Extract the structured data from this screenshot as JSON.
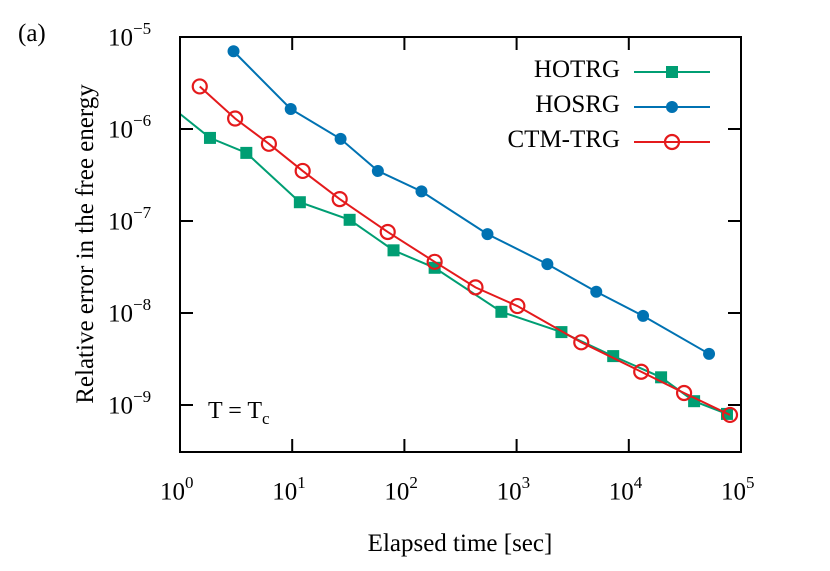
{
  "panel_label": "(a)",
  "annotation": {
    "base": "T = T",
    "sub": "c"
  },
  "colors": {
    "HOTRG": "#009e73",
    "HOSRG": "#0072b2",
    "CTM-TRG": "#e41a1c",
    "axis": "#000000"
  },
  "chart_data": {
    "type": "line",
    "title": "",
    "xlabel": "Elapsed time [sec]",
    "ylabel": "Relative error in the free energy",
    "xscale": "log",
    "yscale": "log",
    "xlim": [
      1,
      100000
    ],
    "ylim": [
      3e-10,
      1e-05
    ],
    "x_ticks": [
      {
        "base": "10",
        "exp": "0",
        "value": 1
      },
      {
        "base": "10",
        "exp": "1",
        "value": 10
      },
      {
        "base": "10",
        "exp": "2",
        "value": 100
      },
      {
        "base": "10",
        "exp": "3",
        "value": 1000
      },
      {
        "base": "10",
        "exp": "4",
        "value": 10000
      },
      {
        "base": "10",
        "exp": "5",
        "value": 100000
      }
    ],
    "y_ticks": [
      {
        "base": "10",
        "exp": "−5",
        "value": 1e-05
      },
      {
        "base": "10",
        "exp": "−6",
        "value": 1e-06
      },
      {
        "base": "10",
        "exp": "−7",
        "value": 1e-07
      },
      {
        "base": "10",
        "exp": "−8",
        "value": 1e-08
      },
      {
        "base": "10",
        "exp": "−9",
        "value": 1e-09
      }
    ],
    "grid": false,
    "legend_position": "upper right",
    "annotations": [
      "T = Tc"
    ],
    "series": [
      {
        "name": "HOTRG",
        "marker": "filled-square",
        "color": "#009e73",
        "line_start": {
          "x": 1.0,
          "y": 1.46e-06
        },
        "x": [
          1.85,
          3.9,
          11.7,
          32.5,
          80,
          186,
          732,
          2510,
          7260,
          19400,
          38200,
          75000
        ],
        "y": [
          8e-07,
          5.5e-07,
          1.6e-07,
          1.03e-07,
          4.8e-08,
          3.1e-08,
          1.03e-08,
          6.2e-09,
          3.4e-09,
          2e-09,
          1.1e-09,
          8e-10
        ]
      },
      {
        "name": "HOSRG",
        "marker": "filled-circle",
        "color": "#0072b2",
        "x": [
          3.0,
          9.7,
          27,
          58,
          142,
          550,
          1880,
          5130,
          13400,
          51900
        ],
        "y": [
          7e-06,
          1.65e-06,
          7.8e-07,
          3.5e-07,
          2.1e-07,
          7.2e-08,
          3.4e-08,
          1.7e-08,
          9.3e-09,
          3.6e-09
        ]
      },
      {
        "name": "CTM-TRG",
        "marker": "open-circle",
        "color": "#e41a1c",
        "x": [
          1.5,
          3.1,
          6.2,
          12.4,
          26.5,
          71,
          186,
          430,
          1016,
          3770,
          12900,
          31100,
          79800
        ],
        "y": [
          2.9e-06,
          1.3e-06,
          6.9e-07,
          3.5e-07,
          1.73e-07,
          7.6e-08,
          3.6e-08,
          1.9e-08,
          1.19e-08,
          4.8e-09,
          2.3e-09,
          1.35e-09,
          7.8e-10
        ]
      }
    ]
  }
}
